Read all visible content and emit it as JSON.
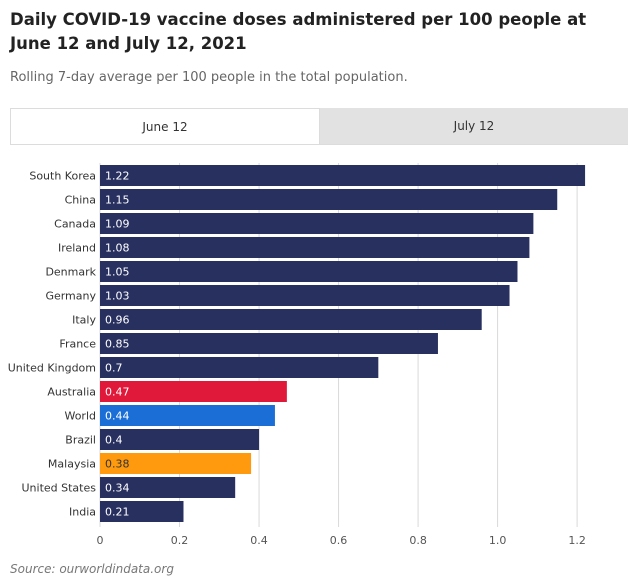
{
  "title": "Daily COVID-19 vaccine doses administered per 100 people at June 12 and July 12, 2021",
  "subtitle": "Rolling 7-day average per 100 people in the total population.",
  "tabs": [
    {
      "label": "June 12",
      "active": true
    },
    {
      "label": "July 12",
      "active": false
    }
  ],
  "source": "Source: ourworldindata.org",
  "chart_data": {
    "type": "bar",
    "orientation": "horizontal",
    "categories": [
      "South Korea",
      "China",
      "Canada",
      "Ireland",
      "Denmark",
      "Germany",
      "Italy",
      "France",
      "United Kingdom",
      "Australia",
      "World",
      "Brazil",
      "Malaysia",
      "United States",
      "India"
    ],
    "values": [
      1.22,
      1.15,
      1.09,
      1.08,
      1.05,
      1.03,
      0.96,
      0.85,
      0.7,
      0.47,
      0.44,
      0.4,
      0.38,
      0.34,
      0.21
    ],
    "value_labels": [
      "1.22",
      "1.15",
      "1.09",
      "1.08",
      "1.05",
      "1.03",
      "0.96",
      "0.85",
      "0.7",
      "0.47",
      "0.44",
      "0.4",
      "0.38",
      "0.34",
      "0.21"
    ],
    "colors": [
      "#283060",
      "#283060",
      "#283060",
      "#283060",
      "#283060",
      "#283060",
      "#283060",
      "#283060",
      "#283060",
      "#e0193a",
      "#1b6ed6",
      "#283060",
      "#ff9a0e",
      "#283060",
      "#283060"
    ],
    "label_colors": [
      "#ffffff",
      "#ffffff",
      "#ffffff",
      "#ffffff",
      "#ffffff",
      "#ffffff",
      "#ffffff",
      "#ffffff",
      "#ffffff",
      "#ffffff",
      "#ffffff",
      "#ffffff",
      "#333333",
      "#ffffff",
      "#ffffff"
    ],
    "xticks": [
      0,
      0.2,
      0.4,
      0.6,
      0.8,
      1.0,
      1.2
    ],
    "xtick_labels": [
      "0",
      "0.2",
      "0.4",
      "0.6",
      "0.8",
      "1.0",
      "1.2"
    ],
    "xlim": [
      0,
      1.25
    ],
    "grid": true
  }
}
